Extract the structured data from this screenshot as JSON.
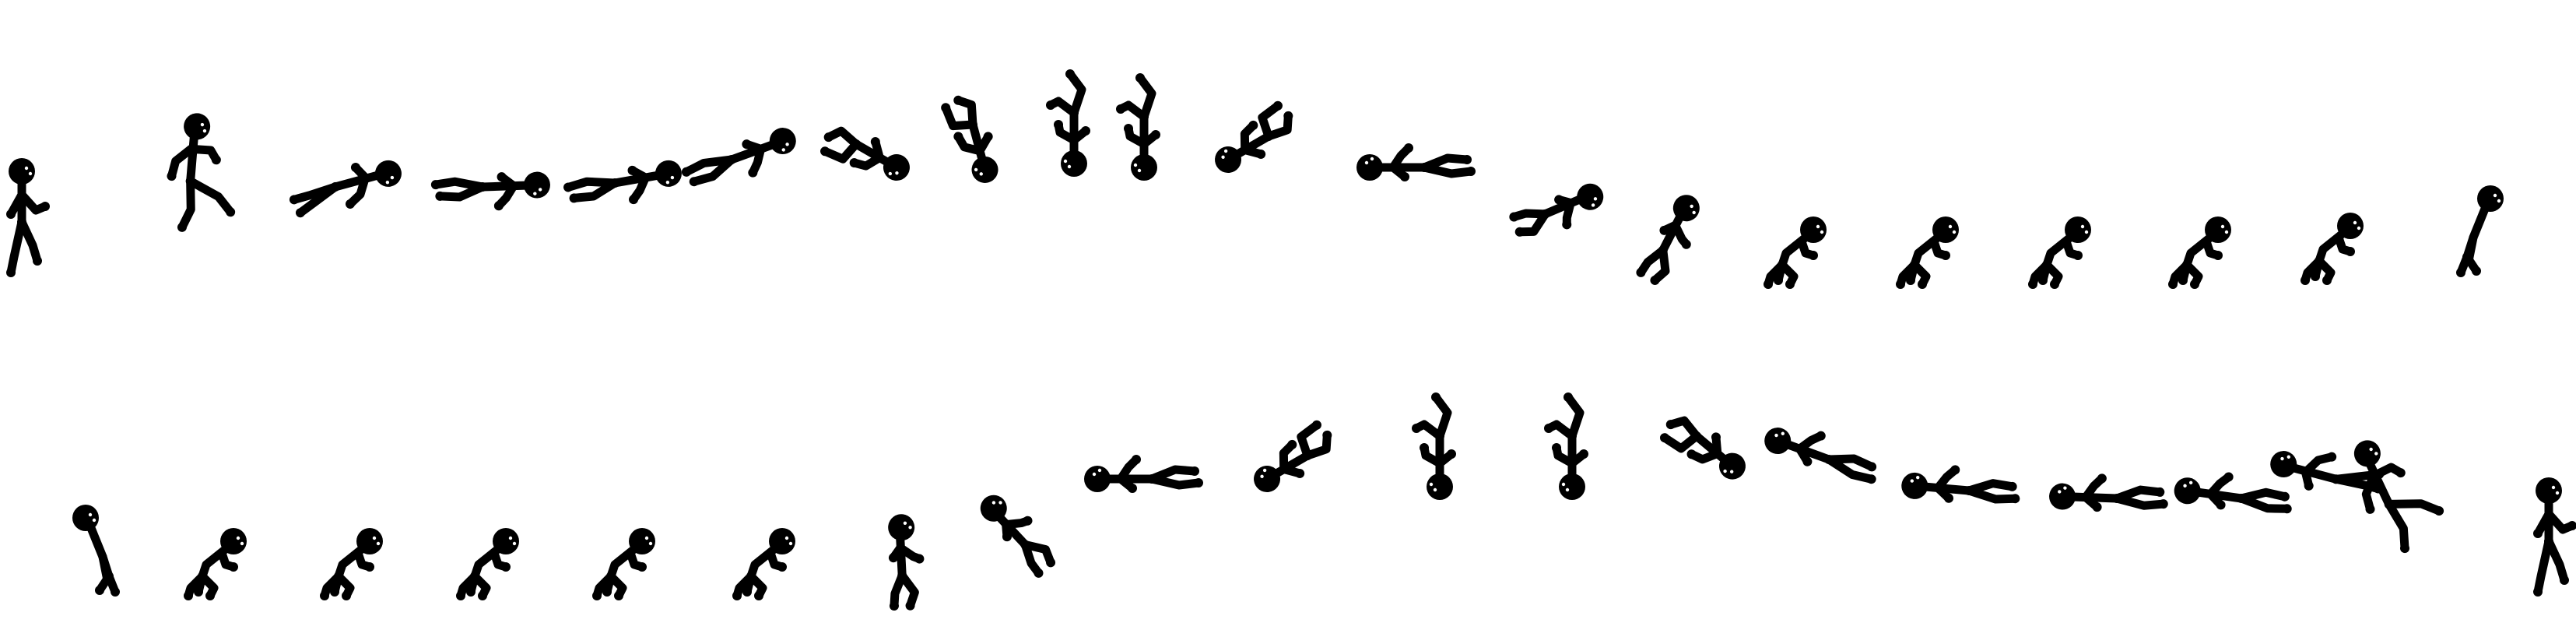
{
  "sprite_sheet": {
    "description_kind": "stick-figure flip animation frames",
    "background": "#ffffff",
    "figure_color": "#000000",
    "eye_color": "#ffffff",
    "rows": [
      {
        "name": "row-1-flip-forward",
        "frame_count": 19
      },
      {
        "name": "row-2-flip-reverse",
        "frame_count": 19
      }
    ]
  }
}
